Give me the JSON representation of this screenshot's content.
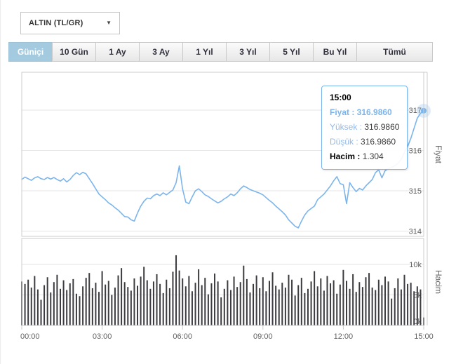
{
  "symbol_selector": {
    "value": "ALTIN (TL/GR)",
    "caret": "▼"
  },
  "range_tabs": {
    "items": [
      {
        "id": "gunici",
        "label": "Güniçi",
        "active": true,
        "wide": false
      },
      {
        "id": "10gun",
        "label": "10 Gün",
        "active": false,
        "wide": false
      },
      {
        "id": "1ay",
        "label": "1 Ay",
        "active": false,
        "wide": false
      },
      {
        "id": "3ay",
        "label": "3 Ay",
        "active": false,
        "wide": false
      },
      {
        "id": "1yil",
        "label": "1 Yıl",
        "active": false,
        "wide": false
      },
      {
        "id": "3yil",
        "label": "3 Yıl",
        "active": false,
        "wide": false
      },
      {
        "id": "5yil",
        "label": "5 Yıl",
        "active": false,
        "wide": false
      },
      {
        "id": "buyil",
        "label": "Bu Yıl",
        "active": false,
        "wide": false
      },
      {
        "id": "tumu",
        "label": "Tümü",
        "active": false,
        "wide": true
      }
    ]
  },
  "tooltip": {
    "time": "15:00",
    "rows": [
      {
        "label": "Fiyat",
        "value": "316.9860",
        "label_color": "#7cb5ec",
        "label_bold": true,
        "value_color": "#7cb5ec",
        "value_bold": true
      },
      {
        "label": "Yüksek",
        "value": "316.9860",
        "label_color": "#93b9e6",
        "label_bold": false,
        "value_color": "#3c3c3c",
        "value_bold": false
      },
      {
        "label": "Düşük",
        "value": "316.9860",
        "label_color": "#93b9e6",
        "label_bold": false,
        "value_color": "#3c3c3c",
        "value_bold": false
      },
      {
        "label": "Hacim",
        "value": "1.304",
        "label_color": "#000000",
        "label_bold": true,
        "value_color": "#3c3c3c",
        "value_bold": false
      }
    ]
  },
  "colors": {
    "price_line": "#7cb5ec",
    "marker": "#7cb5ec",
    "volume_bar": "#3b3b40",
    "grid": "#e6e6e6",
    "plot_border": "#cccccc",
    "axis_text": "#606060",
    "axis_title": "#666666",
    "active_tab": "#a3cade"
  },
  "chart_data": [
    {
      "type": "line",
      "title": "",
      "ylabel": "Fiyat",
      "legend": "none",
      "grid": true,
      "x_start_hour": 0,
      "x_step_hour": 0.12,
      "x_ticks": [
        "00:00",
        "03:00",
        "06:00",
        "09:00",
        "12:00",
        "15:00"
      ],
      "y_ticks": [
        314,
        315,
        316,
        317
      ],
      "ylim": [
        313.87,
        317.94
      ],
      "last_point_marker": true,
      "series": [
        {
          "name": "Fiyat",
          "values": [
            315.28,
            315.34,
            315.3,
            315.26,
            315.32,
            315.35,
            315.3,
            315.28,
            315.33,
            315.29,
            315.33,
            315.28,
            315.24,
            315.3,
            315.22,
            315.28,
            315.38,
            315.45,
            315.4,
            315.46,
            315.42,
            315.3,
            315.18,
            315.05,
            314.92,
            314.85,
            314.78,
            314.7,
            314.65,
            314.58,
            314.52,
            314.44,
            314.36,
            314.35,
            314.28,
            314.25,
            314.45,
            314.62,
            314.74,
            314.82,
            314.8,
            314.88,
            314.92,
            314.88,
            314.95,
            314.9,
            314.96,
            315.02,
            315.2,
            315.62,
            315.05,
            314.72,
            314.68,
            314.85,
            315.0,
            315.05,
            314.98,
            314.9,
            314.86,
            314.8,
            314.75,
            314.7,
            314.74,
            314.8,
            314.85,
            314.92,
            314.88,
            314.95,
            315.05,
            315.12,
            315.08,
            315.03,
            315.0,
            314.97,
            314.94,
            314.9,
            314.83,
            314.76,
            314.7,
            314.62,
            314.55,
            314.48,
            314.4,
            314.28,
            314.2,
            314.12,
            314.08,
            314.25,
            314.4,
            314.5,
            314.56,
            314.62,
            314.78,
            314.85,
            314.92,
            315.02,
            315.12,
            315.25,
            315.35,
            315.18,
            315.15,
            314.68,
            315.2,
            315.08,
            314.98,
            315.06,
            315.02,
            315.12,
            315.2,
            315.28,
            315.45,
            315.52,
            315.32,
            315.5,
            315.55,
            315.58,
            315.62,
            315.68,
            315.78,
            315.95,
            316.1,
            316.3,
            316.55,
            316.8,
            316.92,
            316.986
          ]
        }
      ]
    },
    {
      "type": "bar",
      "title": "",
      "ylabel": "Hacim",
      "legend": "none",
      "grid": true,
      "x_start_hour": 0,
      "x_step_hour": 0.12,
      "x_ticks": [
        "00:00",
        "03:00",
        "06:00",
        "09:00",
        "12:00",
        "15:00"
      ],
      "y_ticks_k": [
        {
          "v": 0,
          "label": "0k"
        },
        {
          "v": 5,
          "label": "5k"
        },
        {
          "v": 10,
          "label": "10k"
        }
      ],
      "ylim": [
        0,
        14.25
      ],
      "unit": "thousands",
      "series": [
        {
          "name": "Hacim",
          "values": [
            7.2,
            6.8,
            7.5,
            6.2,
            8.1,
            5.9,
            4.2,
            6.6,
            7.9,
            5.4,
            7.1,
            8.3,
            6.0,
            7.4,
            5.8,
            6.9,
            7.6,
            5.2,
            4.8,
            6.4,
            7.8,
            8.6,
            6.1,
            7.0,
            5.5,
            8.9,
            6.7,
            7.3,
            5.0,
            6.2,
            8.2,
            9.4,
            7.1,
            6.3,
            5.7,
            7.7,
            6.5,
            8.0,
            9.6,
            7.4,
            6.0,
            7.2,
            8.4,
            6.8,
            5.3,
            7.5,
            6.1,
            8.8,
            11.5,
            9.0,
            7.7,
            6.4,
            8.1,
            5.6,
            7.0,
            9.2,
            6.6,
            7.8,
            5.1,
            6.9,
            8.5,
            7.2,
            4.6,
            6.0,
            7.4,
            5.8,
            8.0,
            6.3,
            7.1,
            9.8,
            7.6,
            5.4,
            6.8,
            8.2,
            6.1,
            7.9,
            5.6,
            7.3,
            8.7,
            6.5,
            5.9,
            7.0,
            6.2,
            8.3,
            7.5,
            4.9,
            6.6,
            7.8,
            5.3,
            6.0,
            7.2,
            8.9,
            6.4,
            7.7,
            5.7,
            8.1,
            6.9,
            7.4,
            5.2,
            6.7,
            9.1,
            7.3,
            6.0,
            8.4,
            5.5,
            7.1,
            6.3,
            7.9,
            8.6,
            6.2,
            5.8,
            7.5,
            6.6,
            8.0,
            7.2,
            4.4,
            6.1,
            7.7,
            5.9,
            8.3,
            6.8,
            7.0,
            5.6,
            6.4,
            5.9,
            1.304
          ]
        }
      ]
    }
  ]
}
